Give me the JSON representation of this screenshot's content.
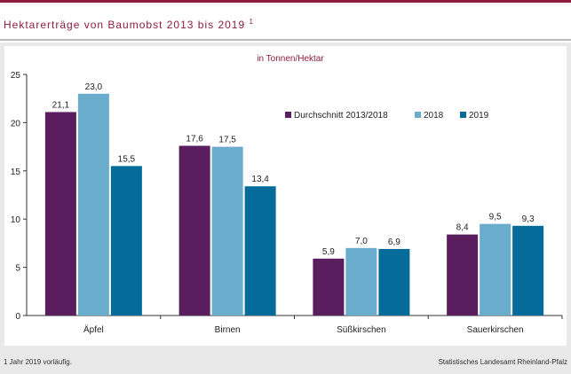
{
  "header": {
    "title": "Hektarerträge von Baumobst 2013 bis 2019",
    "title_sup": "1"
  },
  "footer": {
    "footnote": "1 Jahr 2019 vorläufig.",
    "source": "Statistisches Landesamt Rheinland-Pfalz"
  },
  "colors": {
    "series": [
      "#5a1e5e",
      "#6aaccc",
      "#046b9a"
    ],
    "title": "#8c1d3c",
    "unit": "#8c1d3c"
  },
  "chart_data": {
    "type": "bar",
    "title": "Hektarerträge von Baumobst 2013 bis 2019",
    "unit_label": "in Tonnen/Hektar",
    "categories": [
      "Äpfel",
      "Birnen",
      "Süßkirschen",
      "Sauerkirschen"
    ],
    "series": [
      {
        "name": "Durchschnitt 2013/2018",
        "values": [
          21.1,
          17.6,
          5.9,
          8.4
        ],
        "labels": [
          "21,1",
          "17,6",
          "5,9",
          "8,4"
        ]
      },
      {
        "name": "2018",
        "values": [
          23.0,
          17.5,
          7.0,
          9.5
        ],
        "labels": [
          "23,0",
          "17,5",
          "7,0",
          "9,5"
        ]
      },
      {
        "name": "2019",
        "values": [
          15.5,
          13.4,
          6.9,
          9.3
        ],
        "labels": [
          "15,5",
          "13,4",
          "6,9",
          "9,3"
        ]
      }
    ],
    "ylim": [
      0,
      25
    ],
    "yticks": [
      0,
      5,
      10,
      15,
      20,
      25
    ],
    "ytick_labels": [
      "0",
      "5",
      "10",
      "15",
      "20",
      "25"
    ],
    "grid": false,
    "legend_position": "top-right"
  }
}
